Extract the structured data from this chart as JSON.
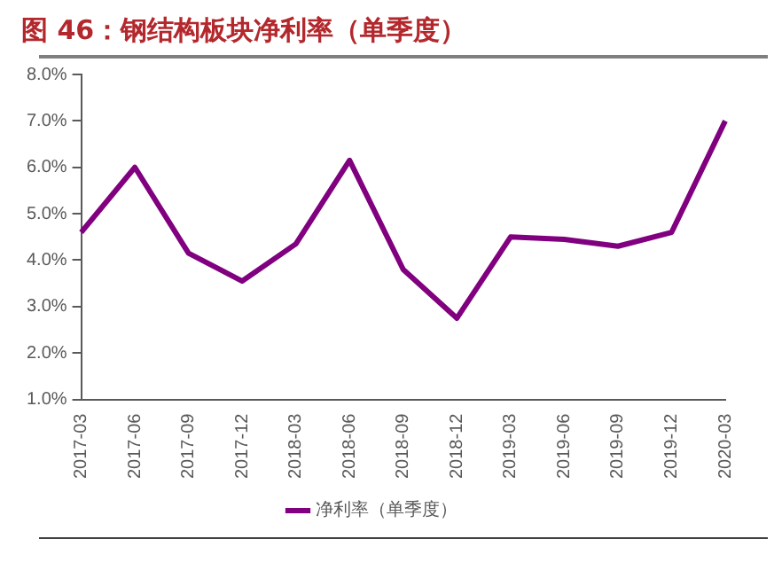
{
  "chart_data": {
    "type": "line",
    "title": "图 46：钢结构板块净利率（单季度）",
    "categories": [
      "2017-03",
      "2017-06",
      "2017-09",
      "2017-12",
      "2018-03",
      "2018-06",
      "2018-09",
      "2018-12",
      "2019-03",
      "2019-06",
      "2019-09",
      "2019-12",
      "2020-03"
    ],
    "series": [
      {
        "name": "净利率（单季度）",
        "color": "#800080",
        "values": [
          4.6,
          6.0,
          4.15,
          3.55,
          4.35,
          6.15,
          3.8,
          2.75,
          4.5,
          4.45,
          4.3,
          4.6,
          7.0
        ]
      }
    ],
    "ylim": [
      1,
      8
    ],
    "yticks": [
      {
        "value": 1,
        "label": "1.0%"
      },
      {
        "value": 2,
        "label": "2.0%"
      },
      {
        "value": 3,
        "label": "3.0%"
      },
      {
        "value": 4,
        "label": "4.0%"
      },
      {
        "value": 5,
        "label": "5.0%"
      },
      {
        "value": 6,
        "label": "6.0%"
      },
      {
        "value": 7,
        "label": "7.0%"
      },
      {
        "value": 8,
        "label": "8.0%"
      }
    ],
    "grid": false,
    "legend": "bottom",
    "marker": "none",
    "line_style": "solid"
  }
}
